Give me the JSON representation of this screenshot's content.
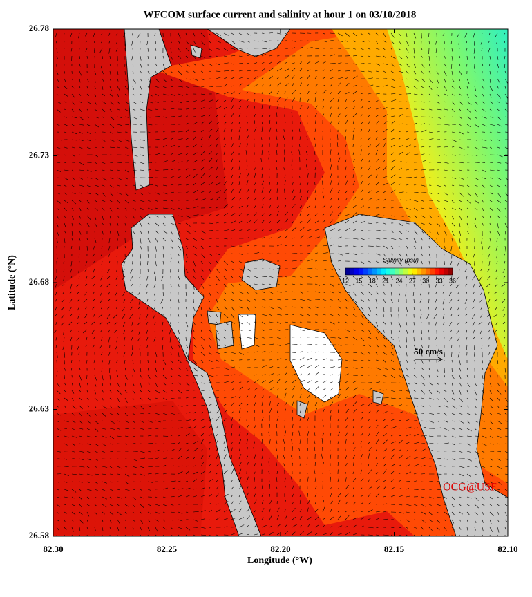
{
  "map": {
    "title": "WFCOM surface current and salinity at hour 1 on 03/10/2018",
    "xlabel": "Longitude (°W)",
    "ylabel": "Latitude (°N)",
    "xlim": [
      82.3,
      82.1
    ],
    "ylim": [
      26.58,
      26.78
    ],
    "xticks": [
      {
        "value": 82.3,
        "label": "82.30"
      },
      {
        "value": 82.25,
        "label": "82.25"
      },
      {
        "value": 82.2,
        "label": "82.20"
      },
      {
        "value": 82.15,
        "label": "82.15"
      },
      {
        "value": 82.1,
        "label": "82.10"
      }
    ],
    "yticks": [
      26.58,
      26.63,
      26.68,
      26.73,
      26.78
    ],
    "colorbar": {
      "title": "Salinity (psu)",
      "lim": [
        12,
        36
      ],
      "ticks": [
        12,
        15,
        18,
        21,
        24,
        27,
        30,
        33,
        36
      ]
    },
    "scale_label": "50 cm/s",
    "credit": "OCG@USF"
  }
}
